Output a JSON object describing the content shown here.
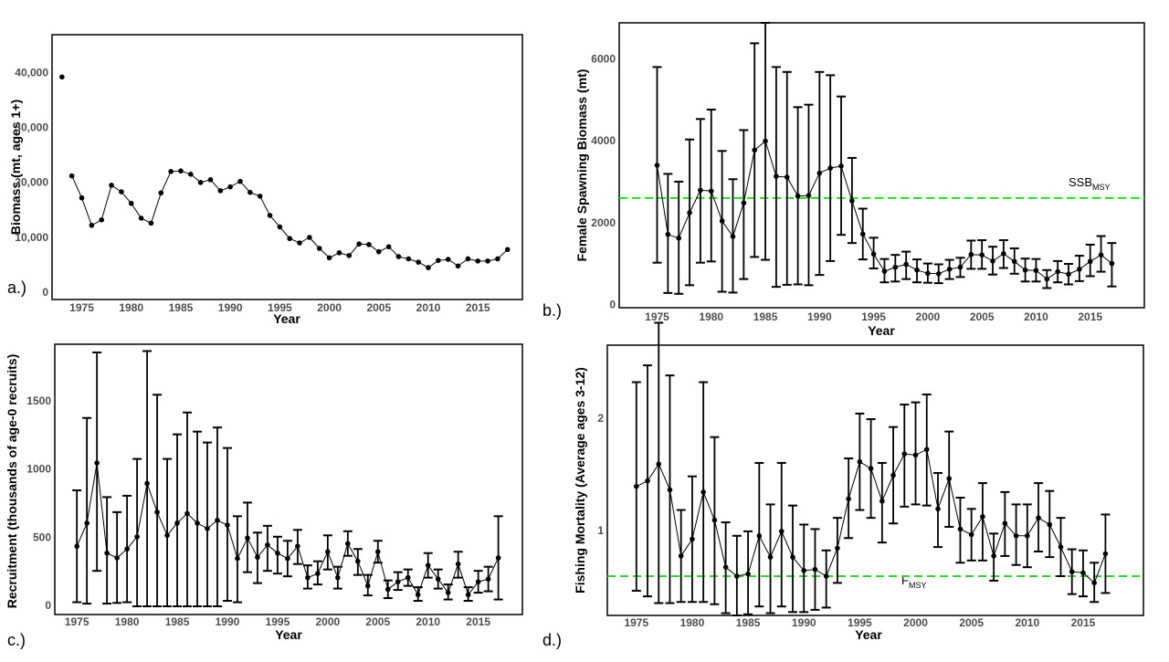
{
  "chart_data": [
    {
      "type": "line",
      "panel_label": "a.)",
      "title": "",
      "xlabel": "Year",
      "ylabel": "Biomass (mt, ages 1+)",
      "xlim": [
        1972,
        2019.5
      ],
      "ylim": [
        -1200,
        47000
      ],
      "x_ticks": [
        "1975",
        "1980",
        "1985",
        "1990",
        "1995",
        "2000",
        "2005",
        "2010",
        "2015"
      ],
      "y_ticks": [
        "0",
        "10,000",
        "20,000",
        "30,000",
        "40,000"
      ],
      "isolated_point": {
        "x": 1973,
        "y": 39300
      },
      "x": [
        1974,
        1975,
        1976,
        1977,
        1978,
        1979,
        1980,
        1981,
        1982,
        1983,
        1984,
        1985,
        1986,
        1987,
        1988,
        1989,
        1990,
        1991,
        1992,
        1993,
        1994,
        1995,
        1996,
        1997,
        1998,
        1999,
        2000,
        2001,
        2002,
        2003,
        2004,
        2005,
        2006,
        2007,
        2008,
        2009,
        2010,
        2011,
        2012,
        2013,
        2014,
        2015,
        2016,
        2017,
        2018
      ],
      "values": [
        21300,
        17300,
        12300,
        13300,
        19600,
        18400,
        16300,
        13600,
        12700,
        18200,
        22100,
        22200,
        21600,
        20100,
        20600,
        18600,
        19300,
        20300,
        18300,
        17600,
        14100,
        12000,
        9900,
        9100,
        10100,
        8100,
        6400,
        7300,
        6800,
        8900,
        8800,
        7500,
        8400,
        6600,
        6200,
        5600,
        4600,
        5900,
        6100,
        4900,
        6200,
        5800,
        5800,
        6200,
        7900
      ],
      "grid": false
    },
    {
      "type": "line",
      "panel_label": "b.)",
      "title": "",
      "xlabel": "Year",
      "ylabel": "Female Spawning Biomass (mt)",
      "xlim": [
        1971.5,
        2020
      ],
      "ylim": [
        -60,
        6900
      ],
      "x_ticks": [
        "1975",
        "1980",
        "1985",
        "1990",
        "1995",
        "2000",
        "2005",
        "2010",
        "2015"
      ],
      "y_ticks": [
        "0",
        "2000",
        "4000",
        "6000"
      ],
      "reference_line": {
        "label_main": "SSB",
        "label_sub": "MSY",
        "value": 2620,
        "color": "#22dd22"
      },
      "x": [
        1975,
        1976,
        1977,
        1978,
        1979,
        1980,
        1981,
        1982,
        1983,
        1984,
        1985,
        1986,
        1987,
        1988,
        1989,
        1990,
        1991,
        1992,
        1993,
        1994,
        1995,
        1996,
        1997,
        1998,
        1999,
        2000,
        2001,
        2002,
        2003,
        2004,
        2005,
        2006,
        2007,
        2008,
        2009,
        2010,
        2011,
        2012,
        2013,
        2014,
        2015,
        2016,
        2017
      ],
      "values": [
        3420,
        1730,
        1640,
        2260,
        2810,
        2790,
        2060,
        1680,
        2500,
        3790,
        4010,
        3150,
        3130,
        2670,
        2680,
        3230,
        3350,
        3400,
        2550,
        1740,
        1250,
        830,
        930,
        1000,
        860,
        780,
        770,
        880,
        930,
        1240,
        1230,
        1080,
        1260,
        1070,
        860,
        850,
        640,
        820,
        760,
        880,
        1070,
        1230,
        1020
      ],
      "lower": [
        1040,
        300,
        280,
        490,
        1040,
        1070,
        330,
        310,
        640,
        1180,
        1110,
        450,
        500,
        510,
        490,
        740,
        1080,
        1720,
        1520,
        1120,
        900,
        560,
        580,
        640,
        560,
        550,
        540,
        640,
        690,
        890,
        890,
        750,
        910,
        770,
        580,
        580,
        420,
        560,
        510,
        590,
        710,
        820,
        460
      ],
      "upper": [
        5820,
        3210,
        3020,
        4050,
        4550,
        4780,
        3770,
        3080,
        4280,
        6400,
        6900,
        5820,
        5700,
        4840,
        4900,
        5700,
        5620,
        5100,
        3600,
        2360,
        1650,
        1130,
        1230,
        1310,
        1120,
        1020,
        1000,
        1110,
        1160,
        1580,
        1590,
        1430,
        1590,
        1390,
        1140,
        1130,
        860,
        1080,
        1010,
        1210,
        1480,
        1690,
        1520
      ],
      "grid": false
    },
    {
      "type": "line",
      "panel_label": "c.)",
      "title": "",
      "xlabel": "Year",
      "ylabel": "Recruitment (thousands of age-0 recruits)",
      "xlim": [
        1972.8,
        2019.4
      ],
      "ylim": [
        -60,
        1920
      ],
      "x_ticks": [
        "1975",
        "1980",
        "1985",
        "1990",
        "1995",
        "2000",
        "2005",
        "2010",
        "2015"
      ],
      "y_ticks": [
        "0",
        "500",
        "1000",
        "1500"
      ],
      "x": [
        1975,
        1976,
        1977,
        1978,
        1979,
        1980,
        1981,
        1982,
        1983,
        1984,
        1985,
        1986,
        1987,
        1988,
        1989,
        1990,
        1991,
        1992,
        1993,
        1994,
        1995,
        1996,
        1997,
        1998,
        1999,
        2000,
        2001,
        2002,
        2003,
        2004,
        2005,
        2006,
        2007,
        2008,
        2009,
        2010,
        2011,
        2012,
        2013,
        2014,
        2015,
        2016,
        2017
      ],
      "values": [
        440,
        610,
        1050,
        390,
        355,
        420,
        510,
        900,
        690,
        520,
        610,
        680,
        610,
        570,
        630,
        595,
        350,
        500,
        360,
        450,
        390,
        350,
        440,
        210,
        240,
        400,
        210,
        460,
        330,
        150,
        400,
        125,
        180,
        210,
        85,
        300,
        200,
        100,
        310,
        85,
        180,
        200,
        355
      ],
      "lower": [
        30,
        20,
        260,
        20,
        25,
        30,
        0,
        0,
        0,
        0,
        0,
        0,
        0,
        0,
        0,
        40,
        30,
        250,
        170,
        260,
        240,
        220,
        310,
        130,
        160,
        270,
        130,
        370,
        230,
        80,
        320,
        60,
        120,
        150,
        40,
        210,
        130,
        50,
        210,
        40,
        100,
        110,
        50
      ],
      "upper": [
        850,
        1380,
        1860,
        800,
        690,
        810,
        1080,
        1870,
        1550,
        1080,
        1260,
        1420,
        1280,
        1200,
        1310,
        1160,
        660,
        760,
        540,
        590,
        510,
        480,
        560,
        300,
        330,
        520,
        290,
        550,
        420,
        230,
        480,
        190,
        250,
        270,
        140,
        390,
        270,
        160,
        400,
        140,
        260,
        290,
        660
      ],
      "grid": false
    },
    {
      "type": "line",
      "panel_label": "d.)",
      "title": "",
      "xlabel": "Year",
      "ylabel": "Fishing Mortality (Average ages 3-12)",
      "xlim": [
        1972.4,
        2020.4
      ],
      "ylim": [
        0.25,
        2.66
      ],
      "x_ticks": [
        "1975",
        "1980",
        "1985",
        "1990",
        "1995",
        "2000",
        "2005",
        "2010",
        "2015"
      ],
      "y_ticks": [
        "1",
        "2"
      ],
      "reference_line": {
        "label_main": "F",
        "label_sub": "MSY",
        "value": 0.6,
        "color": "#22dd22"
      },
      "x": [
        1975,
        1976,
        1977,
        1978,
        1979,
        1980,
        1981,
        1982,
        1983,
        1984,
        1985,
        1986,
        1987,
        1988,
        1989,
        1990,
        1991,
        1992,
        1993,
        1994,
        1995,
        1996,
        1997,
        1998,
        1999,
        2000,
        2001,
        2002,
        2003,
        2004,
        2005,
        2006,
        2007,
        2008,
        2009,
        2010,
        2011,
        2012,
        2013,
        2014,
        2015,
        2016,
        2017
      ],
      "values": [
        1.4,
        1.45,
        1.6,
        1.37,
        0.78,
        0.93,
        1.35,
        1.1,
        0.68,
        0.6,
        0.62,
        0.96,
        0.77,
        1.0,
        0.77,
        0.65,
        0.66,
        0.6,
        0.85,
        1.29,
        1.62,
        1.56,
        1.27,
        1.5,
        1.69,
        1.68,
        1.73,
        1.2,
        1.47,
        1.02,
        0.97,
        1.13,
        0.78,
        1.07,
        0.96,
        0.96,
        1.12,
        1.06,
        0.86,
        0.64,
        0.63,
        0.54,
        0.8
      ],
      "lower": [
        0.47,
        0.42,
        0.36,
        0.36,
        0.37,
        0.37,
        0.37,
        0.35,
        0.27,
        0.25,
        0.26,
        0.33,
        0.27,
        0.33,
        0.28,
        0.28,
        0.3,
        0.32,
        0.54,
        0.94,
        1.19,
        1.12,
        0.9,
        1.07,
        1.22,
        1.24,
        1.23,
        0.86,
        1.04,
        0.72,
        0.74,
        0.74,
        0.56,
        0.78,
        0.7,
        0.68,
        0.82,
        0.77,
        0.6,
        0.44,
        0.42,
        0.37,
        0.45
      ],
      "upper": [
        2.33,
        2.48,
        2.86,
        2.39,
        1.19,
        1.49,
        2.33,
        1.84,
        1.08,
        0.96,
        1.0,
        1.61,
        1.24,
        1.61,
        1.23,
        1.06,
        1.02,
        0.83,
        1.12,
        1.65,
        2.05,
        2.0,
        1.61,
        1.93,
        2.13,
        2.15,
        2.22,
        1.52,
        1.89,
        1.3,
        1.2,
        1.43,
        0.98,
        1.35,
        1.24,
        1.24,
        1.43,
        1.36,
        1.12,
        0.84,
        0.83,
        0.72,
        1.15
      ],
      "grid": false
    }
  ]
}
